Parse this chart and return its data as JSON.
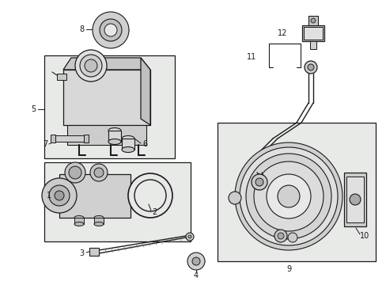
{
  "bg_color": "#ffffff",
  "line_color": "#1a1a1a",
  "box_fill": "#e8eae8",
  "part_color": "#d0d0d0",
  "fig_w": 4.89,
  "fig_h": 3.6,
  "dpi": 100
}
